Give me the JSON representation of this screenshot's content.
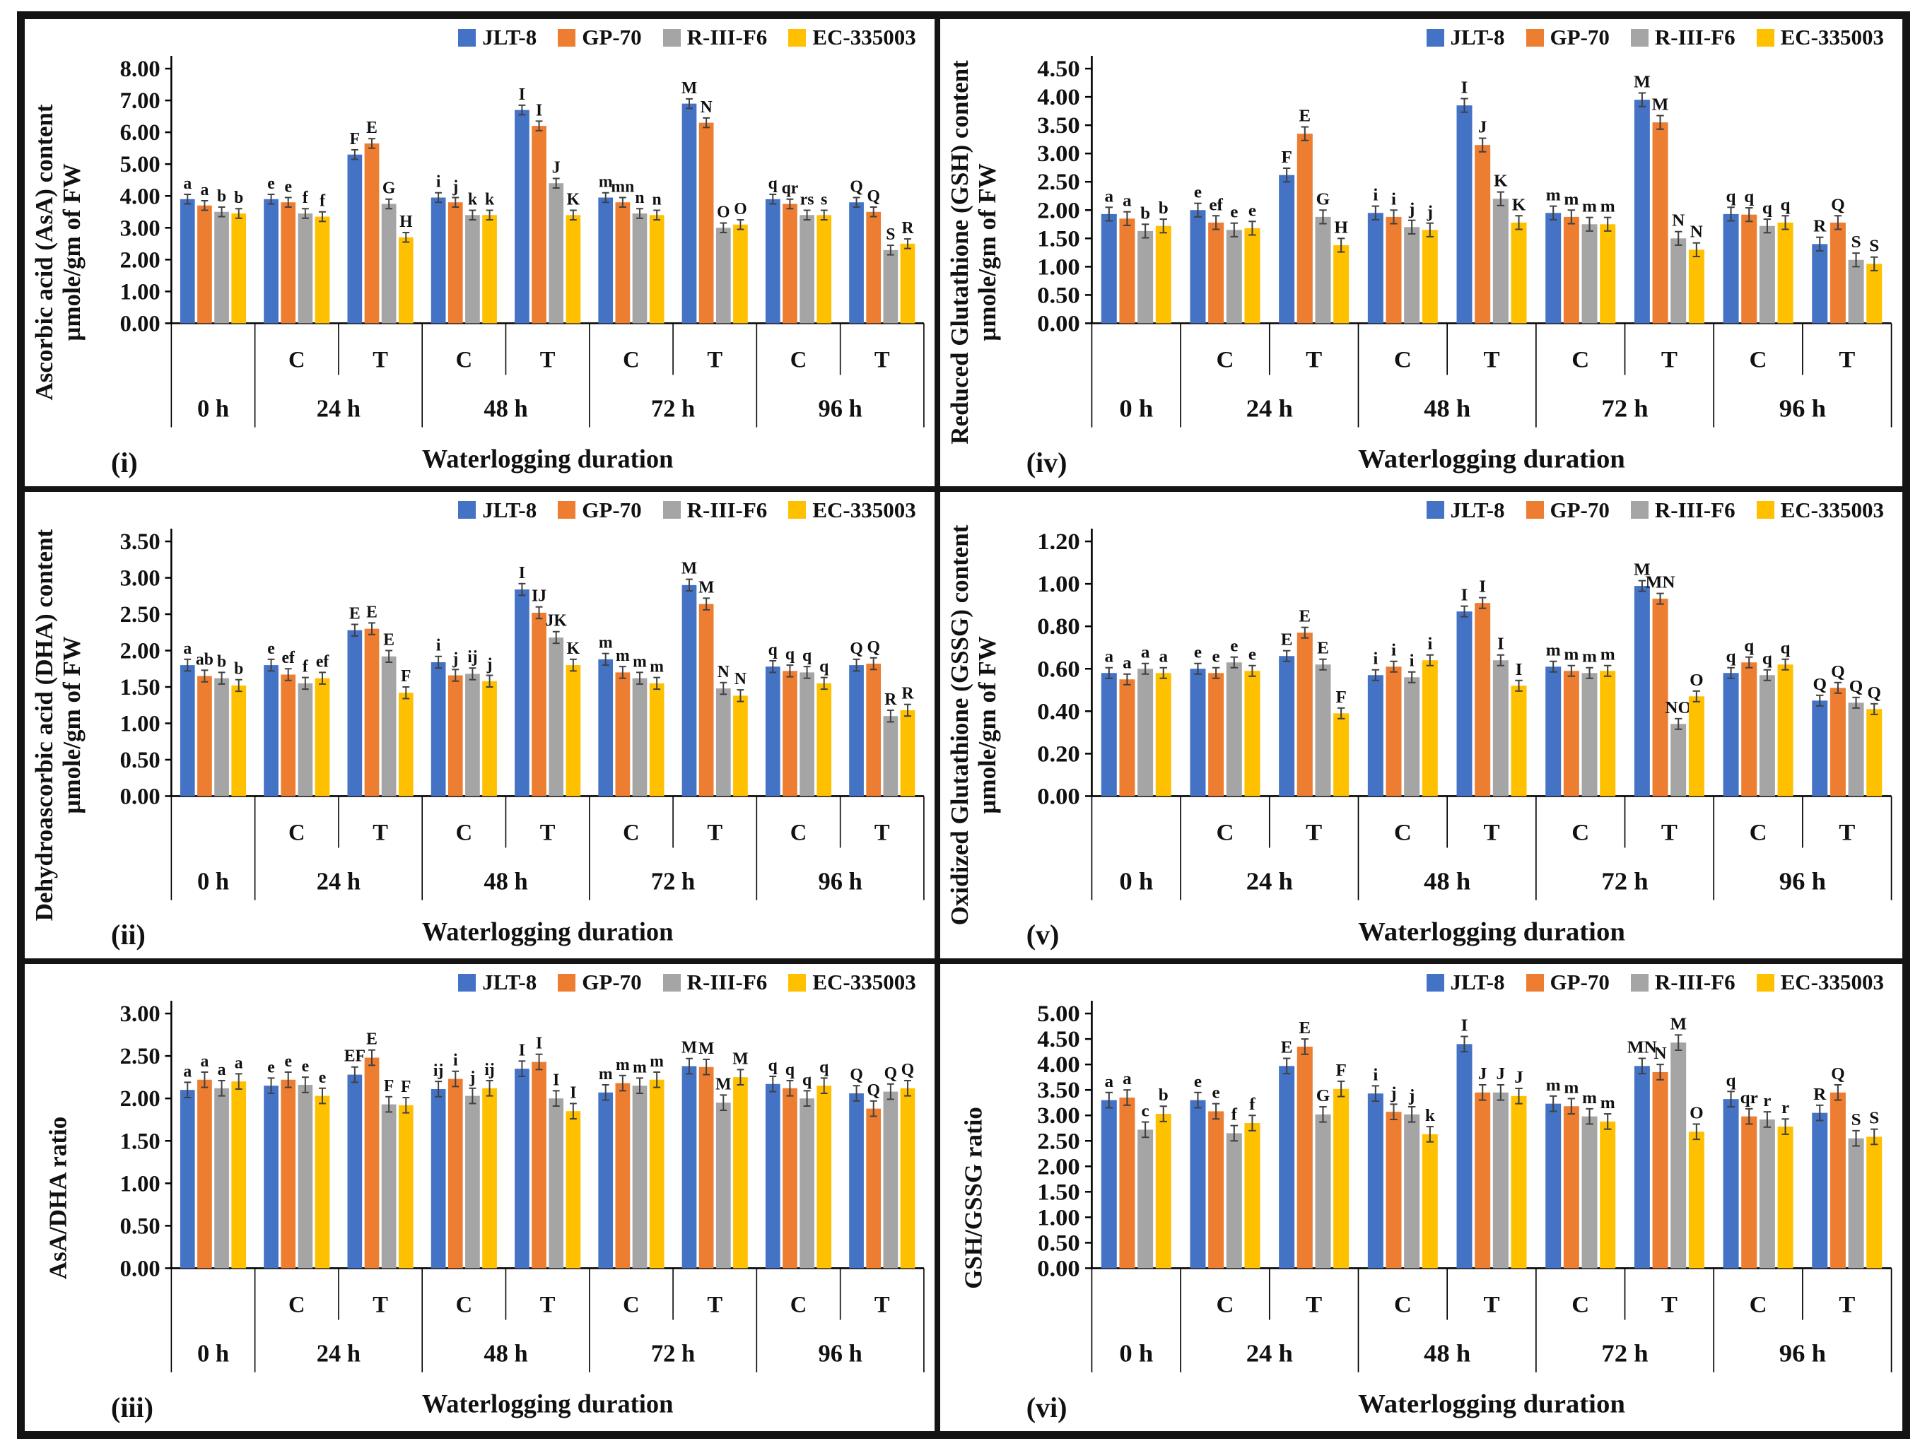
{
  "figure": {
    "series": [
      {
        "name": "JLT-8",
        "color": "#4472C4"
      },
      {
        "name": "GP-70",
        "color": "#ED7D31"
      },
      {
        "name": "R-III-F6",
        "color": "#A5A5A5"
      },
      {
        "name": "EC-335003",
        "color": "#FFC000"
      }
    ],
    "xlabel": "Waterlogging duration",
    "subgroup_labels": [
      "C",
      "T"
    ],
    "durations": [
      "0 h",
      "24 h",
      "48 h",
      "72 h",
      "96 h"
    ],
    "error_bar_color": "#404040",
    "axis_color": "#000000"
  },
  "chart_data": [
    {
      "type": "bar",
      "panel": "(i)",
      "title_lines": [
        "Ascorbic acid (AsA) content",
        "µmole/gm of FW"
      ],
      "xlabel": "Waterlogging duration",
      "ylim": [
        0,
        8.0
      ],
      "ystep": 1.0,
      "err": 0.15,
      "categories": [
        "0 h",
        "24 h C",
        "24 h T",
        "48 h C",
        "48 h T",
        "72 h C",
        "72 h T",
        "96 h C",
        "96 h T"
      ],
      "series": [
        {
          "name": "JLT-8",
          "values": [
            3.9,
            3.9,
            5.3,
            3.95,
            6.7,
            3.95,
            6.9,
            3.9,
            3.8
          ],
          "letters": [
            "a",
            "e",
            "F",
            "i",
            "I",
            "m",
            "M",
            "q",
            "Q"
          ]
        },
        {
          "name": "GP-70",
          "values": [
            3.7,
            3.8,
            5.65,
            3.8,
            6.2,
            3.8,
            6.3,
            3.75,
            3.5
          ],
          "letters": [
            "a",
            "e",
            "E",
            "j",
            "I",
            "mn",
            "N",
            "qr",
            "Q"
          ]
        },
        {
          "name": "R-III-F6",
          "values": [
            3.5,
            3.45,
            3.75,
            3.4,
            4.4,
            3.45,
            3.0,
            3.4,
            2.3
          ],
          "letters": [
            "b",
            "f",
            "G",
            "k",
            "J",
            "n",
            "O",
            "rs",
            "S"
          ]
        },
        {
          "name": "EC-335003",
          "values": [
            3.45,
            3.35,
            2.7,
            3.4,
            3.4,
            3.4,
            3.1,
            3.4,
            2.5
          ],
          "letters": [
            "b",
            "f",
            "H",
            "k",
            "K",
            "n",
            "O",
            "s",
            "R"
          ]
        }
      ]
    },
    {
      "type": "bar",
      "panel": "(ii)",
      "title_lines": [
        "Dehydroascorbic acid (DHA) content",
        "µmole/gm of FW"
      ],
      "xlabel": "Waterlogging duration",
      "ylim": [
        0,
        3.5
      ],
      "ystep": 0.5,
      "err": 0.08,
      "categories": [
        "0 h",
        "24 h C",
        "24 h T",
        "48 h C",
        "48 h T",
        "72 h C",
        "72 h T",
        "96 h C",
        "96 h T"
      ],
      "series": [
        {
          "name": "JLT-8",
          "values": [
            1.8,
            1.8,
            2.28,
            1.84,
            2.84,
            1.88,
            2.9,
            1.78,
            1.8
          ],
          "letters": [
            "a",
            "e",
            "E",
            "i",
            "I",
            "m",
            "M",
            "q",
            "Q"
          ]
        },
        {
          "name": "GP-70",
          "values": [
            1.65,
            1.67,
            2.3,
            1.66,
            2.52,
            1.7,
            2.64,
            1.72,
            1.82
          ],
          "letters": [
            "ab",
            "ef",
            "E",
            "j",
            "IJ",
            "m",
            "M",
            "q",
            "Q"
          ]
        },
        {
          "name": "R-III-F6",
          "values": [
            1.62,
            1.55,
            1.92,
            1.68,
            2.18,
            1.62,
            1.48,
            1.7,
            1.1
          ],
          "letters": [
            "b",
            "f",
            "E",
            "ij",
            "JK",
            "m",
            "N",
            "q",
            "R"
          ]
        },
        {
          "name": "EC-335003",
          "values": [
            1.52,
            1.62,
            1.42,
            1.58,
            1.8,
            1.55,
            1.38,
            1.55,
            1.18
          ],
          "letters": [
            "b",
            "ef",
            "F",
            "j",
            "K",
            "m",
            "N",
            "q",
            "R"
          ]
        }
      ]
    },
    {
      "type": "bar",
      "panel": "(iii)",
      "title_lines": [
        "AsA/DHA ratio"
      ],
      "xlabel": "Waterlogging duration",
      "ylim": [
        0,
        3.0
      ],
      "ystep": 0.5,
      "err": 0.09,
      "categories": [
        "0 h",
        "24 h C",
        "24 h T",
        "48 h C",
        "48 h T",
        "72 h C",
        "72 h T",
        "96 h C",
        "96 h T"
      ],
      "series": [
        {
          "name": "JLT-8",
          "values": [
            2.1,
            2.15,
            2.28,
            2.11,
            2.35,
            2.07,
            2.38,
            2.17,
            2.06
          ],
          "letters": [
            "a",
            "e",
            "EF",
            "ij",
            "I",
            "m",
            "M",
            "q",
            "Q"
          ]
        },
        {
          "name": "GP-70",
          "values": [
            2.22,
            2.22,
            2.48,
            2.23,
            2.43,
            2.18,
            2.37,
            2.12,
            1.88
          ],
          "letters": [
            "a",
            "e",
            "E",
            "i",
            "I",
            "m",
            "M",
            "q",
            "Q"
          ]
        },
        {
          "name": "R-III-F6",
          "values": [
            2.12,
            2.16,
            1.93,
            2.03,
            2.0,
            2.15,
            1.95,
            2.0,
            2.08
          ],
          "letters": [
            "a",
            "e",
            "F",
            "j",
            "I",
            "m",
            "M",
            "q",
            "Q"
          ]
        },
        {
          "name": "EC-335003",
          "values": [
            2.2,
            2.03,
            1.92,
            2.12,
            1.85,
            2.22,
            2.25,
            2.15,
            2.12
          ],
          "letters": [
            "a",
            "e",
            "F",
            "ij",
            "I",
            "m",
            "M",
            "q",
            "Q"
          ]
        }
      ]
    },
    {
      "type": "bar",
      "panel": "(iv)",
      "title_lines": [
        "Reduced Glutathione (GSH) content",
        "µmole/gm of FW"
      ],
      "xlabel": "Waterlogging duration",
      "ylim": [
        0,
        4.5
      ],
      "ystep": 0.5,
      "err": 0.12,
      "categories": [
        "0 h",
        "24 h C",
        "24 h T",
        "48 h C",
        "48 h T",
        "72 h C",
        "72 h T",
        "96 h C",
        "96 h T"
      ],
      "series": [
        {
          "name": "JLT-8",
          "values": [
            1.93,
            2.0,
            2.62,
            1.95,
            3.85,
            1.95,
            3.95,
            1.93,
            1.4
          ],
          "letters": [
            "a",
            "e",
            "F",
            "i",
            "I",
            "m",
            "M",
            "q",
            "R"
          ]
        },
        {
          "name": "GP-70",
          "values": [
            1.85,
            1.78,
            3.35,
            1.88,
            3.15,
            1.88,
            3.55,
            1.92,
            1.78
          ],
          "letters": [
            "a",
            "ef",
            "E",
            "i",
            "J",
            "m",
            "M",
            "q",
            "Q"
          ]
        },
        {
          "name": "R-III-F6",
          "values": [
            1.63,
            1.65,
            1.88,
            1.7,
            2.2,
            1.75,
            1.5,
            1.72,
            1.12
          ],
          "letters": [
            "b",
            "e",
            "G",
            "j",
            "K",
            "m",
            "N",
            "q",
            "S"
          ]
        },
        {
          "name": "EC-335003",
          "values": [
            1.72,
            1.68,
            1.38,
            1.65,
            1.78,
            1.75,
            1.3,
            1.78,
            1.05
          ],
          "letters": [
            "b",
            "e",
            "H",
            "j",
            "K",
            "m",
            "N",
            "q",
            "S"
          ]
        }
      ]
    },
    {
      "type": "bar",
      "panel": "(v)",
      "title_lines": [
        "Oxidized Glutathione (GSSG) content",
        "µmole/gm of FW"
      ],
      "xlabel": "Waterlogging duration",
      "ylim": [
        0,
        1.2
      ],
      "ystep": 0.2,
      "err": 0.025,
      "categories": [
        "0 h",
        "24 h C",
        "24 h T",
        "48 h C",
        "48 h T",
        "72 h C",
        "72 h T",
        "96 h C",
        "96 h T"
      ],
      "series": [
        {
          "name": "JLT-8",
          "values": [
            0.58,
            0.6,
            0.66,
            0.57,
            0.87,
            0.61,
            0.99,
            0.58,
            0.45
          ],
          "letters": [
            "a",
            "e",
            "E",
            "i",
            "I",
            "m",
            "M",
            "q",
            "Q"
          ]
        },
        {
          "name": "GP-70",
          "values": [
            0.55,
            0.58,
            0.77,
            0.61,
            0.91,
            0.59,
            0.93,
            0.63,
            0.51
          ],
          "letters": [
            "a",
            "e",
            "E",
            "i",
            "I",
            "m",
            "MN",
            "q",
            "Q"
          ]
        },
        {
          "name": "R-III-F6",
          "values": [
            0.6,
            0.63,
            0.62,
            0.56,
            0.64,
            0.58,
            0.34,
            0.57,
            0.44
          ],
          "letters": [
            "a",
            "e",
            "E",
            "i",
            "I",
            "m",
            "NO",
            "q",
            "Q"
          ]
        },
        {
          "name": "EC-335003",
          "values": [
            0.58,
            0.59,
            0.39,
            0.64,
            0.52,
            0.59,
            0.47,
            0.62,
            0.41
          ],
          "letters": [
            "a",
            "e",
            "F",
            "i",
            "I",
            "m",
            "O",
            "q",
            "Q"
          ]
        }
      ]
    },
    {
      "type": "bar",
      "panel": "(vi)",
      "title_lines": [
        "GSH/GSSG ratio"
      ],
      "xlabel": "Waterlogging duration",
      "ylim": [
        0,
        5.0
      ],
      "ystep": 0.5,
      "err": 0.15,
      "categories": [
        "0 h",
        "24 h C",
        "24 h T",
        "48 h C",
        "48 h T",
        "72 h C",
        "72 h T",
        "96 h C",
        "96 h T"
      ],
      "series": [
        {
          "name": "JLT-8",
          "values": [
            3.3,
            3.3,
            3.97,
            3.43,
            4.4,
            3.23,
            3.97,
            3.32,
            3.05
          ],
          "letters": [
            "a",
            "e",
            "E",
            "i",
            "I",
            "m",
            "MN",
            "q",
            "R"
          ]
        },
        {
          "name": "GP-70",
          "values": [
            3.35,
            3.08,
            4.35,
            3.07,
            3.45,
            3.18,
            3.85,
            2.98,
            3.45
          ],
          "letters": [
            "a",
            "e",
            "E",
            "j",
            "J",
            "m",
            "N",
            "qr",
            "Q"
          ]
        },
        {
          "name": "R-III-F6",
          "values": [
            2.72,
            2.65,
            3.02,
            3.02,
            3.45,
            2.98,
            4.43,
            2.92,
            2.55
          ],
          "letters": [
            "c",
            "f",
            "G",
            "j",
            "J",
            "m",
            "M",
            "r",
            "S"
          ]
        },
        {
          "name": "EC-335003",
          "values": [
            3.03,
            2.85,
            3.52,
            2.63,
            3.38,
            2.88,
            2.68,
            2.78,
            2.58
          ],
          "letters": [
            "b",
            "f",
            "F",
            "k",
            "J",
            "m",
            "O",
            "r",
            "S"
          ]
        }
      ]
    }
  ]
}
